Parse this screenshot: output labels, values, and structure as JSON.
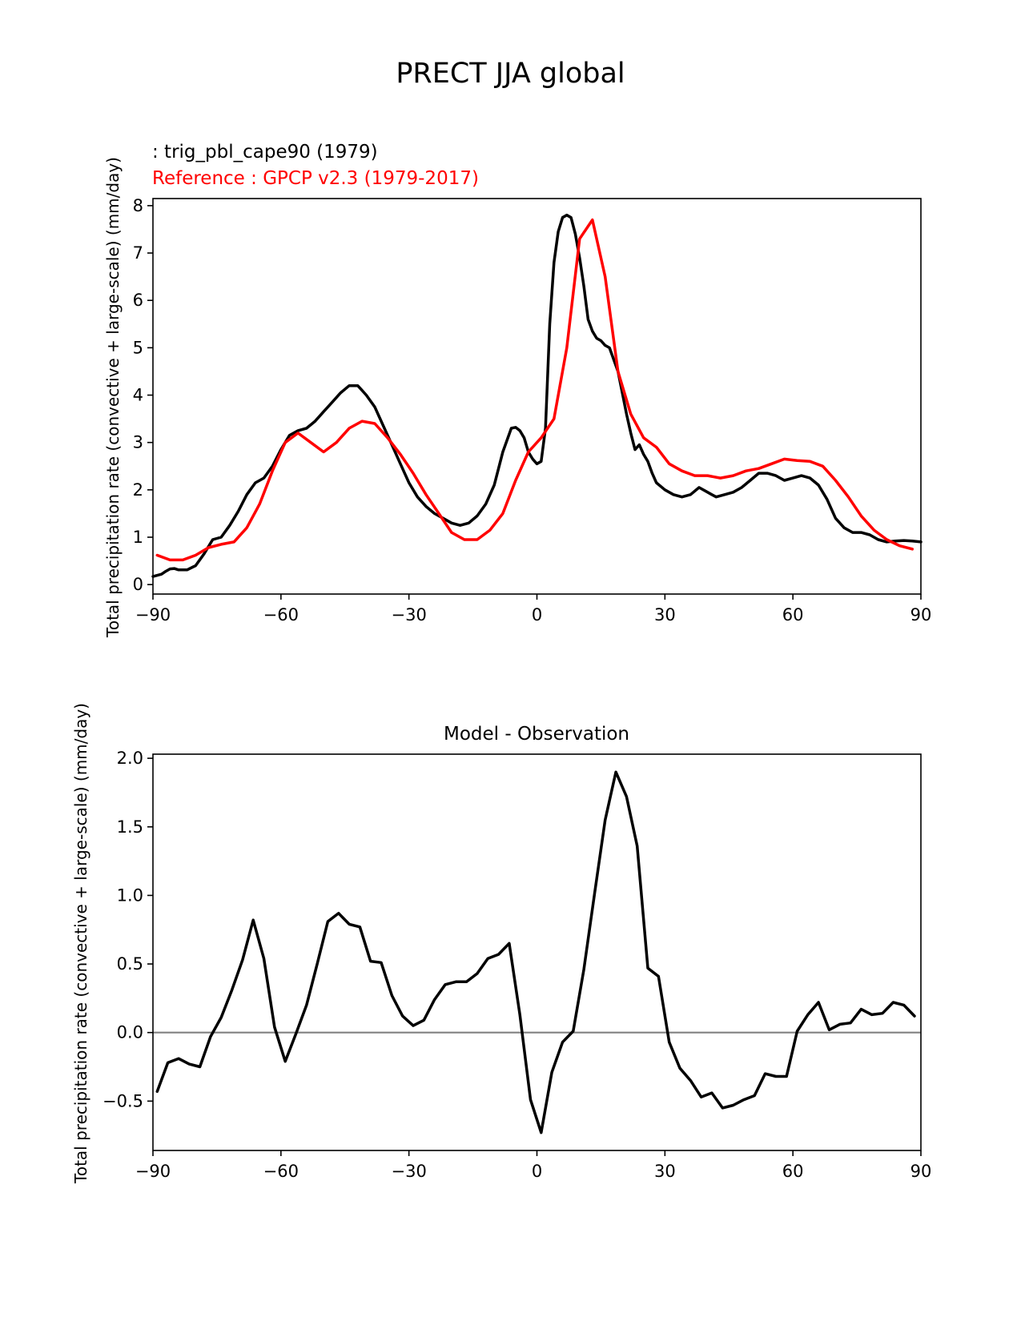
{
  "title": "PRECT JJA global",
  "colors": {
    "model": "#000000",
    "reference": "#ff0000",
    "zero_line": "#808080"
  },
  "chart_data": [
    {
      "type": "line",
      "legend": {
        "test_label": " : trig_pbl_cape90 (1979)",
        "ref_label": "Reference : GPCP v2.3 (1979-2017)"
      },
      "xlabel": "",
      "ylabel": "Total precipitation rate (convective + large-scale) (mm/day)",
      "xlim": [
        -90,
        90
      ],
      "ylim": [
        -0.2,
        8.15
      ],
      "xticks": [
        -90,
        -60,
        -30,
        0,
        30,
        60,
        90
      ],
      "xticklabels": [
        "−90",
        "−60",
        "−30",
        "0",
        "30",
        "60",
        "90"
      ],
      "yticks": [
        0,
        1,
        2,
        3,
        4,
        5,
        6,
        7,
        8
      ],
      "yticklabels": [
        "0",
        "1",
        "2",
        "3",
        "4",
        "5",
        "6",
        "7",
        "8"
      ],
      "series": [
        {
          "name": "trig_pbl_cape90 (1979)",
          "color": "#000000",
          "x": [
            -90,
            -88,
            -87,
            -86,
            -85,
            -84,
            -82,
            -80,
            -78,
            -76,
            -74,
            -72,
            -70,
            -68,
            -66,
            -64,
            -62,
            -60,
            -58,
            -56,
            -54,
            -52,
            -50,
            -48,
            -46,
            -44,
            -42,
            -41,
            -40,
            -38,
            -36,
            -34,
            -32,
            -30,
            -28,
            -26,
            -24,
            -22,
            -20,
            -18,
            -16,
            -14,
            -12,
            -10,
            -8,
            -6,
            -5,
            -4,
            -3,
            -2,
            -1,
            0,
            1,
            2,
            3,
            4,
            5,
            6,
            7,
            8,
            9,
            10,
            11,
            12,
            13,
            14,
            15,
            16,
            17,
            18,
            19,
            20,
            21,
            22,
            23,
            24,
            25,
            26,
            27,
            28,
            30,
            32,
            34,
            36,
            38,
            40,
            41,
            42,
            44,
            46,
            48,
            50,
            52,
            54,
            56,
            58,
            60,
            62,
            64,
            66,
            68,
            70,
            72,
            74,
            76,
            78,
            80,
            82,
            84,
            86,
            88,
            90
          ],
          "y": [
            0.17,
            0.22,
            0.28,
            0.33,
            0.34,
            0.31,
            0.31,
            0.4,
            0.65,
            0.95,
            1.0,
            1.25,
            1.55,
            1.9,
            2.15,
            2.25,
            2.5,
            2.85,
            3.15,
            3.25,
            3.3,
            3.45,
            3.65,
            3.85,
            4.05,
            4.2,
            4.2,
            4.1,
            4.0,
            3.75,
            3.35,
            2.95,
            2.55,
            2.15,
            1.85,
            1.65,
            1.5,
            1.4,
            1.3,
            1.25,
            1.3,
            1.45,
            1.7,
            2.1,
            2.8,
            3.3,
            3.32,
            3.25,
            3.1,
            2.8,
            2.65,
            2.55,
            2.6,
            3.3,
            5.5,
            6.8,
            7.45,
            7.75,
            7.8,
            7.75,
            7.4,
            6.9,
            6.3,
            5.6,
            5.35,
            5.2,
            5.15,
            5.05,
            5.0,
            4.75,
            4.5,
            4.05,
            3.6,
            3.2,
            2.85,
            2.95,
            2.75,
            2.6,
            2.35,
            2.15,
            2.0,
            1.9,
            1.85,
            1.9,
            2.05,
            1.95,
            1.9,
            1.85,
            1.9,
            1.95,
            2.05,
            2.2,
            2.35,
            2.35,
            2.3,
            2.2,
            2.25,
            2.3,
            2.25,
            2.1,
            1.8,
            1.4,
            1.2,
            1.1,
            1.1,
            1.05,
            0.95,
            0.9,
            0.92,
            0.93,
            0.92,
            0.9
          ]
        },
        {
          "name": "Reference : GPCP v2.3 (1979-2017)",
          "color": "#ff0000",
          "x": [
            -89,
            -86,
            -83,
            -80,
            -77,
            -74,
            -71,
            -68,
            -65,
            -62,
            -59,
            -56,
            -53,
            -50,
            -47,
            -44,
            -41,
            -38,
            -35,
            -32,
            -29,
            -26,
            -23,
            -20,
            -17,
            -14,
            -11,
            -8,
            -5,
            -2,
            1,
            4,
            7,
            10,
            13,
            16,
            19,
            22,
            25,
            28,
            31,
            34,
            37,
            40,
            43,
            46,
            49,
            52,
            55,
            58,
            61,
            64,
            67,
            70,
            73,
            76,
            79,
            82,
            85,
            88
          ],
          "y": [
            0.62,
            0.52,
            0.52,
            0.62,
            0.78,
            0.85,
            0.9,
            1.2,
            1.7,
            2.4,
            3.0,
            3.2,
            3.0,
            2.8,
            3.0,
            3.3,
            3.45,
            3.4,
            3.1,
            2.75,
            2.35,
            1.9,
            1.5,
            1.1,
            0.95,
            0.95,
            1.15,
            1.5,
            2.2,
            2.8,
            3.1,
            3.5,
            5.0,
            7.3,
            7.7,
            6.5,
            4.5,
            3.6,
            3.1,
            2.9,
            2.55,
            2.4,
            2.3,
            2.3,
            2.25,
            2.3,
            2.4,
            2.45,
            2.55,
            2.65,
            2.62,
            2.6,
            2.5,
            2.2,
            1.85,
            1.45,
            1.15,
            0.95,
            0.82,
            0.75
          ]
        }
      ]
    },
    {
      "type": "line",
      "title": "Model - Observation",
      "xlabel": "",
      "ylabel": "Total precipitation rate (convective + large-scale) (mm/day)",
      "xlim": [
        -90,
        90
      ],
      "ylim": [
        -0.86,
        2.03
      ],
      "xticks": [
        -90,
        -60,
        -30,
        0,
        30,
        60,
        90
      ],
      "xticklabels": [
        "−90",
        "−60",
        "−30",
        "0",
        "30",
        "60",
        "90"
      ],
      "yticks": [
        -0.5,
        0.0,
        0.5,
        1.0,
        1.5,
        2.0
      ],
      "yticklabels": [
        "−0.5",
        "0.0",
        "0.5",
        "1.0",
        "1.5",
        "2.0"
      ],
      "zero_line": 0,
      "series": [
        {
          "name": "Model - Observation",
          "color": "#000000",
          "x": [
            -89,
            -86.5,
            -84,
            -81.5,
            -79,
            -76.5,
            -74,
            -71.5,
            -69,
            -66.5,
            -64,
            -61.5,
            -59,
            -56.5,
            -54,
            -51.5,
            -49,
            -46.5,
            -44,
            -41.5,
            -39,
            -36.5,
            -34,
            -31.5,
            -29,
            -26.5,
            -24,
            -21.5,
            -19,
            -16.5,
            -14,
            -11.5,
            -9,
            -6.5,
            -4,
            -1.5,
            1,
            3.5,
            6,
            8.5,
            11,
            13.5,
            16,
            18.5,
            21,
            23.5,
            26,
            28.5,
            31,
            33.5,
            36,
            38.5,
            41,
            43.5,
            46,
            48.5,
            51,
            53.5,
            56,
            58.5,
            61,
            63.5,
            66,
            68.5,
            71,
            73.5,
            76,
            78.5,
            81,
            83.5,
            86,
            88.5
          ],
          "y": [
            -0.43,
            -0.22,
            -0.19,
            -0.23,
            -0.25,
            -0.03,
            0.11,
            0.31,
            0.53,
            0.82,
            0.54,
            0.04,
            -0.21,
            -0.01,
            0.2,
            0.5,
            0.81,
            0.87,
            0.79,
            0.77,
            0.52,
            0.51,
            0.27,
            0.12,
            0.05,
            0.09,
            0.24,
            0.35,
            0.37,
            0.37,
            0.43,
            0.54,
            0.57,
            0.65,
            0.13,
            -0.49,
            -0.73,
            -0.29,
            -0.07,
            0.01,
            0.46,
            1.01,
            1.55,
            1.9,
            1.72,
            1.36,
            0.47,
            0.41,
            -0.07,
            -0.26,
            -0.35,
            -0.47,
            -0.44,
            -0.55,
            -0.53,
            -0.49,
            -0.46,
            -0.3,
            -0.32,
            -0.32,
            0.01,
            0.13,
            0.22,
            0.02,
            0.06,
            0.07,
            0.17,
            0.13,
            0.14,
            0.22,
            0.2,
            0.12
          ]
        }
      ]
    }
  ]
}
